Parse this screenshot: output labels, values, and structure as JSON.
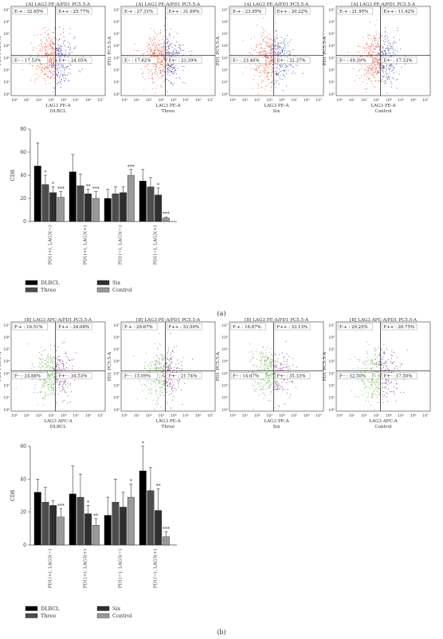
{
  "panels": [
    {
      "label": "(a)",
      "quad_prefix": "E",
      "flow": [
        {
          "title": "[A] LAG3 PE-A/PD1 PC5.5-A",
          "xlabel": "LAG3 PE-A",
          "ylabel": "PD1 PC5.5-A",
          "sample": "DLBCL",
          "q": [
            "32.65%",
            "25.77%",
            "17.53%",
            "24.05%"
          ]
        },
        {
          "title": "[A] LAG3 PE-A/PD1 PC5.5-A",
          "xlabel": "LAG3 PE-A",
          "ylabel": "PD1 PC5.5-A",
          "sample": "Three",
          "q": [
            "27.31%",
            "31.69%",
            "17.62%",
            "23.39%"
          ]
        },
        {
          "title": "[A] LAG3 PE-A/PD1 PC5.5-A",
          "xlabel": "LAG3 PE-A",
          "ylabel": "PD1 PC5.5-A",
          "sample": "Six",
          "q": [
            "23.95%",
            "20.22%",
            "23.46%",
            "32.37%"
          ]
        },
        {
          "title": "[A] LAG3 PE-A/PD1 PC5.5-A",
          "xlabel": "LAG3 PE-A",
          "ylabel": "PD1 PC5.5-A",
          "sample": "Control",
          "q": [
            "21.95%",
            "11.42%",
            "49.29%",
            "17.33%"
          ]
        }
      ]
    },
    {
      "label": "(b)",
      "quad_prefix": "F",
      "flow": [
        {
          "title": "[B] LAG3 APC-A/PD1 PC5.5-A",
          "xlabel": "LAG3 APC-A",
          "ylabel": "PD1 PC5.5-A",
          "sample": "DLBCL",
          "q": [
            "16.51%",
            "24.08%",
            "24.88%",
            "34.53%"
          ]
        },
        {
          "title": "[B] LAG3 PE-A/PD1 PC5.5-A",
          "xlabel": "LAG3 PE-A",
          "ylabel": "PD1 PC5.5-A",
          "sample": "Three",
          "q": [
            "29.67%",
            "33.50%",
            "15.09%",
            "21.74%"
          ]
        },
        {
          "title": "[B] LAG3 PE-A/PD1 PC5.5-A",
          "xlabel": "LAG3 PE-A",
          "ylabel": "PD1 PC5.5-A",
          "sample": "Six",
          "q": [
            "16.87%",
            "33.13%",
            "14.67%",
            "35.33%"
          ]
        },
        {
          "title": "[B] LAG3 APC-A/PD1 PC5.5-A",
          "xlabel": "LAG3 APC-A",
          "ylabel": "PD1 PC5.5-A",
          "sample": "Control",
          "q": [
            "29.25%",
            "20.75%",
            "32.50%",
            "17.50%"
          ]
        }
      ]
    }
  ],
  "quad_suffix": [
    "-+",
    "++",
    "--",
    "+-"
  ],
  "flow_ticks": [
    "10⁰",
    "10¹",
    "10²",
    "10³",
    "10⁴",
    "10⁵",
    "10⁶",
    "10⁷"
  ],
  "colors": {
    "DLBCL": "#000000",
    "Three": "#4d4d4d",
    "Six": "#2f2f2f",
    "Control": "#9a9a9a",
    "dots_a": [
      "#e8583a",
      "#2a3aa8"
    ],
    "dots_b": [
      "#5fae3c",
      "#7a2a8a"
    ]
  },
  "chart_data": [
    {
      "type": "bar",
      "ylabel": "CD8",
      "ylim": [
        0,
        80
      ],
      "yticks": [
        0,
        20,
        40,
        60,
        80
      ],
      "categories": [
        "PD1(+), LAG3(−)",
        "PD1(+), LAG3(+)",
        "PD1(−), LAG3(−)",
        "PD1(−), LAG3(+)"
      ],
      "series": [
        {
          "name": "DLBCL",
          "values": [
            48,
            43,
            20,
            35
          ],
          "err": [
            20,
            15,
            8,
            10
          ],
          "sig": [
            "",
            "",
            "",
            ""
          ]
        },
        {
          "name": "Three",
          "values": [
            32,
            31,
            24,
            30
          ],
          "err": [
            8,
            10,
            6,
            8
          ],
          "sig": [
            "*",
            "",
            "",
            ""
          ]
        },
        {
          "name": "Six",
          "values": [
            25,
            24,
            25,
            23
          ],
          "err": [
            5,
            4,
            5,
            6
          ],
          "sig": [
            "*",
            "**",
            "",
            "*"
          ]
        },
        {
          "name": "Control",
          "values": [
            21,
            20,
            40,
            3
          ],
          "err": [
            5,
            6,
            5,
            1
          ],
          "sig": [
            "***",
            "***",
            "***",
            "***"
          ]
        }
      ],
      "legend": "bottom-left"
    },
    {
      "type": "bar",
      "ylabel": "CD8",
      "ylim": [
        0,
        60
      ],
      "yticks": [
        0,
        20,
        40,
        60
      ],
      "categories": [
        "PD1(+), LAG3(−)",
        "PD1(+), LAG3(+)",
        "PD1(−), LAG3(−)",
        "PD1(−), LAG3(+)"
      ],
      "series": [
        {
          "name": "DLBCL",
          "values": [
            32,
            31,
            18,
            45
          ],
          "err": [
            8,
            17,
            11,
            15
          ],
          "sig": [
            "",
            "",
            "",
            "*"
          ]
        },
        {
          "name": "Three",
          "values": [
            26,
            29,
            26,
            33
          ],
          "err": [
            9,
            14,
            14,
            14
          ],
          "sig": [
            "",
            "",
            "",
            ""
          ]
        },
        {
          "name": "Six",
          "values": [
            24,
            19,
            23,
            21
          ],
          "err": [
            3,
            5,
            9,
            13
          ],
          "sig": [
            "",
            "*",
            "",
            "**"
          ]
        },
        {
          "name": "Control",
          "values": [
            17,
            12,
            29,
            5
          ],
          "err": [
            5,
            4,
            8,
            3
          ],
          "sig": [
            "***",
            "**",
            "*",
            "***"
          ]
        }
      ],
      "legend": "bottom-left"
    }
  ]
}
